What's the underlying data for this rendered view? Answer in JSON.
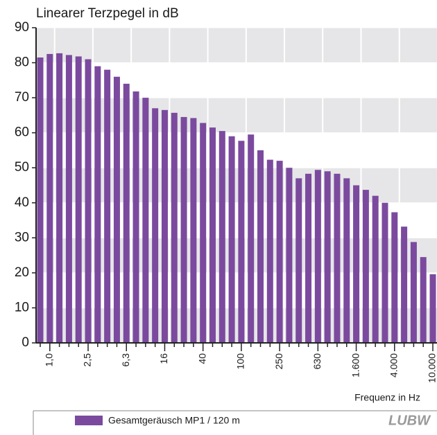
{
  "chart_data": {
    "type": "bar",
    "title": "Linearer Terzpegel in dB",
    "x_label": "Frequenz in Hz",
    "categories": [
      null,
      "1,0",
      null,
      null,
      null,
      "2,5",
      null,
      null,
      null,
      "6,3",
      null,
      null,
      null,
      "16",
      null,
      null,
      null,
      "40",
      null,
      null,
      null,
      "100",
      null,
      null,
      null,
      "250",
      null,
      null,
      null,
      "630",
      null,
      null,
      null,
      "1.600",
      null,
      null,
      null,
      "4.000",
      null,
      null,
      null,
      "10.000"
    ],
    "series": [
      {
        "name": "Gesamtgeräusch MP1 / 120 m",
        "color": "#7b4a9e",
        "values": [
          81.5,
          82.5,
          82.7,
          82.2,
          81.8,
          81,
          79,
          78,
          76,
          74,
          71.8,
          70,
          67,
          66.5,
          65.7,
          64.5,
          64.2,
          62.8,
          61.5,
          60.5,
          59,
          57.7,
          59.5,
          55,
          52.3,
          52,
          50,
          47,
          48.3,
          49.4,
          49,
          48.3,
          47,
          45,
          43.7,
          42,
          40,
          37.3,
          33.2,
          28.8,
          24.5,
          19.6
        ]
      }
    ],
    "ylim": [
      0,
      90
    ],
    "yticks": [
      0,
      10,
      20,
      30,
      40,
      50,
      60,
      70,
      80,
      90
    ],
    "grid": true,
    "logo": "LUBW"
  }
}
